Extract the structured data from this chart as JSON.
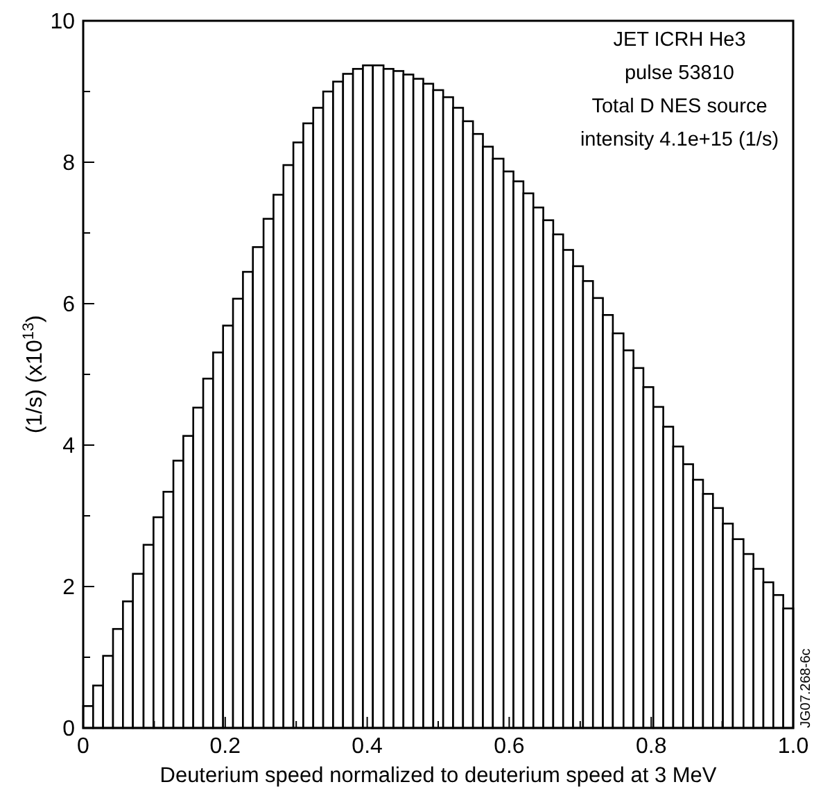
{
  "chart_data": {
    "type": "histogram",
    "xlabel": "Deuterium speed normalized to deuterium speed at 3 MeV",
    "ylabel": "(1/s) (x10$^{13}$)",
    "annotations": [
      "JET  ICRH He3",
      "pulse 53810",
      "Total D NES source",
      "intensity 4.1e+15 (1/s)",
      "JG07.268-6c"
    ],
    "bins": [
      0,
      0.014,
      0.028,
      0.042,
      0.056,
      0.07,
      0.085,
      0.099,
      0.113,
      0.127,
      0.141,
      0.155,
      0.169,
      0.183,
      0.197,
      0.211,
      0.225,
      0.239,
      0.254,
      0.268,
      0.282,
      0.296,
      0.31,
      0.324,
      0.338,
      0.352,
      0.366,
      0.38,
      0.394,
      0.408,
      0.423,
      0.437,
      0.451,
      0.465,
      0.479,
      0.493,
      0.507,
      0.521,
      0.535,
      0.549,
      0.563,
      0.577,
      0.592,
      0.606,
      0.62,
      0.634,
      0.648,
      0.662,
      0.676,
      0.69,
      0.704,
      0.718,
      0.732,
      0.746,
      0.761,
      0.775,
      0.789,
      0.803,
      0.817,
      0.831,
      0.845,
      0.859,
      0.873,
      0.887,
      0.901,
      0.915,
      0.93,
      0.944,
      0.958,
      0.972,
      0.986,
      1.0
    ],
    "values": [
      0.31,
      0.6,
      1.02,
      1.4,
      1.79,
      2.18,
      2.59,
      2.98,
      3.34,
      3.78,
      4.13,
      4.53,
      4.94,
      5.31,
      5.69,
      6.07,
      6.45,
      6.8,
      7.2,
      7.54,
      7.96,
      8.28,
      8.55,
      8.77,
      9.0,
      9.14,
      9.25,
      9.32,
      9.37,
      9.37,
      9.32,
      9.29,
      9.24,
      9.18,
      9.11,
      9.02,
      8.92,
      8.77,
      8.58,
      8.4,
      8.22,
      8.05,
      7.87,
      7.73,
      7.56,
      7.36,
      7.18,
      6.98,
      6.76,
      6.53,
      6.32,
      6.08,
      5.84,
      5.58,
      5.34,
      5.09,
      4.82,
      4.54,
      4.26,
      3.98,
      3.73,
      3.51,
      3.31,
      3.11,
      2.89,
      2.67,
      2.46,
      2.25,
      2.06,
      1.88,
      1.69
    ],
    "color": "#ffffff",
    "xlim": [
      0,
      1
    ],
    "xticks": [
      0,
      {
        "value": 0.1,
        "label": null
      },
      0.2,
      {
        "value": 0.3,
        "label": null
      },
      0.4,
      {
        "value": 0.5,
        "label": null
      },
      0.6,
      {
        "value": 0.7,
        "label": null
      },
      0.8,
      {
        "value": 0.9,
        "label": null
      },
      {
        "value": 1,
        "label": "1.0"
      }
    ],
    "ylim": [
      0,
      10
    ],
    "yticks": [
      0,
      {
        "value": 1,
        "label": null
      },
      2,
      {
        "value": 3,
        "label": null
      },
      4,
      {
        "value": 5,
        "label": null
      },
      6,
      {
        "value": 7,
        "label": null
      },
      8,
      {
        "value": 9,
        "label": null
      },
      10
    ],
    "grid": false
  }
}
